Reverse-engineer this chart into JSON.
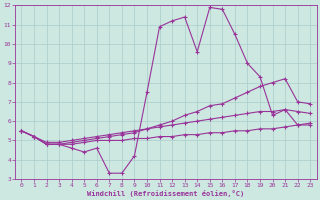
{
  "bg_color": "#cce8e0",
  "grid_color": "#aacccc",
  "line_color": "#993399",
  "xlim": [
    -0.5,
    23.5
  ],
  "ylim": [
    3,
    12
  ],
  "xticks": [
    0,
    1,
    2,
    3,
    4,
    5,
    6,
    7,
    8,
    9,
    10,
    11,
    12,
    13,
    14,
    15,
    16,
    17,
    18,
    19,
    20,
    21,
    22,
    23
  ],
  "yticks": [
    3,
    4,
    5,
    6,
    7,
    8,
    9,
    10,
    11,
    12
  ],
  "xlabel": "Windchill (Refroidissement éolien,°C)",
  "series1_x": [
    0,
    1,
    2,
    3,
    4,
    5,
    6,
    7,
    8,
    9,
    10,
    11,
    12,
    13,
    14,
    15,
    16,
    17,
    18,
    19,
    20,
    21,
    22,
    23
  ],
  "series1_y": [
    5.5,
    5.2,
    4.8,
    4.8,
    4.6,
    4.4,
    4.6,
    3.3,
    3.3,
    4.2,
    7.5,
    10.9,
    11.2,
    11.4,
    9.6,
    11.9,
    11.8,
    10.5,
    9.0,
    8.3,
    6.3,
    6.6,
    5.8,
    5.8
  ],
  "series2_x": [
    0,
    1,
    2,
    3,
    4,
    5,
    6,
    7,
    8,
    9,
    10,
    11,
    12,
    13,
    14,
    15,
    16,
    17,
    18,
    19,
    20,
    21,
    22,
    23
  ],
  "series2_y": [
    5.5,
    5.2,
    4.8,
    4.8,
    4.9,
    5.0,
    5.1,
    5.2,
    5.3,
    5.4,
    5.6,
    5.8,
    6.0,
    6.3,
    6.5,
    6.8,
    6.9,
    7.2,
    7.5,
    7.8,
    8.0,
    8.2,
    7.0,
    6.9
  ],
  "series3_x": [
    0,
    1,
    2,
    3,
    4,
    5,
    6,
    7,
    8,
    9,
    10,
    11,
    12,
    13,
    14,
    15,
    16,
    17,
    18,
    19,
    20,
    21,
    22,
    23
  ],
  "series3_y": [
    5.5,
    5.2,
    4.9,
    4.9,
    5.0,
    5.1,
    5.2,
    5.3,
    5.4,
    5.5,
    5.6,
    5.7,
    5.8,
    5.9,
    6.0,
    6.1,
    6.2,
    6.3,
    6.4,
    6.5,
    6.5,
    6.6,
    6.5,
    6.4
  ],
  "series4_x": [
    0,
    1,
    2,
    3,
    4,
    5,
    6,
    7,
    8,
    9,
    10,
    11,
    12,
    13,
    14,
    15,
    16,
    17,
    18,
    19,
    20,
    21,
    22,
    23
  ],
  "series4_y": [
    5.5,
    5.2,
    4.8,
    4.8,
    4.8,
    4.9,
    5.0,
    5.0,
    5.0,
    5.1,
    5.1,
    5.2,
    5.2,
    5.3,
    5.3,
    5.4,
    5.4,
    5.5,
    5.5,
    5.6,
    5.6,
    5.7,
    5.8,
    5.9
  ]
}
